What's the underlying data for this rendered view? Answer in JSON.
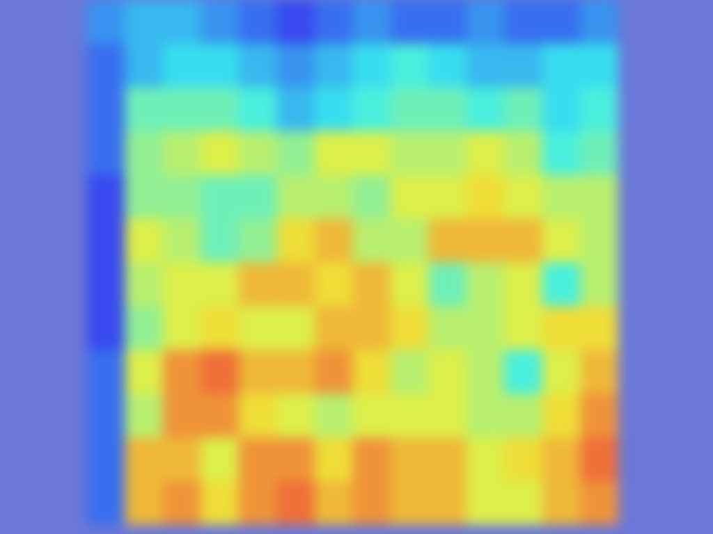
{
  "chart_data": {
    "type": "heatmap",
    "tick_labels": false,
    "color_range": [
      0,
      1
    ],
    "cells": [
      [
        0.25,
        0.3,
        0.3,
        0.25,
        0.2,
        0.15,
        0.2,
        0.25,
        0.2,
        0.2,
        0.25,
        0.2,
        0.2,
        0.25
      ],
      [
        0.2,
        0.3,
        0.35,
        0.35,
        0.3,
        0.25,
        0.3,
        0.35,
        0.4,
        0.35,
        0.3,
        0.3,
        0.35,
        0.35
      ],
      [
        0.2,
        0.45,
        0.45,
        0.45,
        0.4,
        0.3,
        0.35,
        0.4,
        0.45,
        0.45,
        0.4,
        0.45,
        0.35,
        0.4
      ],
      [
        0.2,
        0.5,
        0.55,
        0.6,
        0.55,
        0.5,
        0.6,
        0.6,
        0.55,
        0.55,
        0.6,
        0.55,
        0.4,
        0.45
      ],
      [
        0.15,
        0.5,
        0.5,
        0.45,
        0.45,
        0.55,
        0.55,
        0.5,
        0.6,
        0.6,
        0.65,
        0.6,
        0.55,
        0.55
      ],
      [
        0.15,
        0.6,
        0.55,
        0.45,
        0.5,
        0.65,
        0.7,
        0.55,
        0.55,
        0.7,
        0.7,
        0.7,
        0.6,
        0.55
      ],
      [
        0.15,
        0.55,
        0.6,
        0.6,
        0.7,
        0.7,
        0.65,
        0.7,
        0.6,
        0.45,
        0.55,
        0.6,
        0.4,
        0.55
      ],
      [
        0.15,
        0.5,
        0.6,
        0.65,
        0.6,
        0.6,
        0.7,
        0.7,
        0.65,
        0.55,
        0.55,
        0.6,
        0.65,
        0.65
      ],
      [
        0.2,
        0.6,
        0.75,
        0.8,
        0.7,
        0.7,
        0.75,
        0.65,
        0.55,
        0.6,
        0.55,
        0.4,
        0.6,
        0.7
      ],
      [
        0.2,
        0.55,
        0.75,
        0.75,
        0.65,
        0.6,
        0.55,
        0.6,
        0.6,
        0.6,
        0.55,
        0.55,
        0.65,
        0.75
      ],
      [
        0.2,
        0.7,
        0.7,
        0.6,
        0.75,
        0.75,
        0.65,
        0.75,
        0.7,
        0.7,
        0.6,
        0.65,
        0.7,
        0.8
      ],
      [
        0.2,
        0.7,
        0.75,
        0.65,
        0.75,
        0.8,
        0.7,
        0.75,
        0.7,
        0.7,
        0.6,
        0.6,
        0.7,
        0.75
      ]
    ]
  }
}
